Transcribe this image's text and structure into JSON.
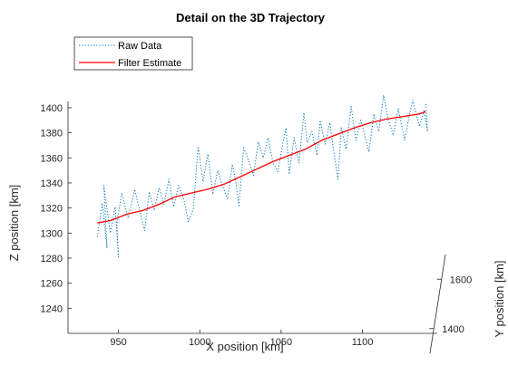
{
  "chart_data": {
    "type": "line",
    "title": "Detail on the 3D Trajectory",
    "xlabel": "X position [km]",
    "ylabel": "Y position [km]",
    "zlabel": "Z position [km]",
    "x_ticks": [
      950,
      1000,
      1050,
      1100
    ],
    "y_ticks": [
      1400,
      1600
    ],
    "z_ticks": [
      1240,
      1260,
      1280,
      1300,
      1320,
      1340,
      1360,
      1380,
      1400
    ],
    "xlim": [
      919,
      1146
    ],
    "zlim": [
      1220,
      1405
    ],
    "ylim": [
      1300,
      1700
    ],
    "grid": false,
    "legend_position": "top-left",
    "colors": {
      "raw": "#0072BD",
      "filter": "#FF0000",
      "axes": "#262626"
    },
    "series": [
      {
        "name": "Raw Data",
        "style": "dotted",
        "points": [
          [
            937,
            1297
          ],
          [
            940,
            1324
          ],
          [
            943,
            1288
          ],
          [
            941,
            1338
          ],
          [
            945,
            1300
          ],
          [
            948,
            1321
          ],
          [
            950,
            1281
          ],
          [
            949,
            1307
          ],
          [
            952,
            1332
          ],
          [
            956,
            1312
          ],
          [
            960,
            1335
          ],
          [
            963,
            1318
          ],
          [
            966,
            1302
          ],
          [
            969,
            1333
          ],
          [
            972,
            1318
          ],
          [
            975,
            1336
          ],
          [
            978,
            1323
          ],
          [
            981,
            1343
          ],
          [
            984,
            1321
          ],
          [
            987,
            1338
          ],
          [
            990,
            1328
          ],
          [
            993,
            1309
          ],
          [
            996,
            1319
          ],
          [
            999,
            1369
          ],
          [
            1002,
            1341
          ],
          [
            1005,
            1363
          ],
          [
            1008,
            1331
          ],
          [
            1011,
            1350
          ],
          [
            1014,
            1338
          ],
          [
            1017,
            1327
          ],
          [
            1020,
            1355
          ],
          [
            1022,
            1342
          ],
          [
            1024,
            1322
          ],
          [
            1027,
            1368
          ],
          [
            1030,
            1358
          ],
          [
            1033,
            1346
          ],
          [
            1036,
            1373
          ],
          [
            1039,
            1360
          ],
          [
            1042,
            1376
          ],
          [
            1045,
            1356
          ],
          [
            1048,
            1349
          ],
          [
            1051,
            1371
          ],
          [
            1053,
            1384
          ],
          [
            1055,
            1347
          ],
          [
            1058,
            1376
          ],
          [
            1061,
            1356
          ],
          [
            1064,
            1396
          ],
          [
            1066,
            1372
          ],
          [
            1069,
            1381
          ],
          [
            1072,
            1362
          ],
          [
            1074,
            1390
          ],
          [
            1077,
            1371
          ],
          [
            1080,
            1388
          ],
          [
            1082,
            1368
          ],
          [
            1085,
            1343
          ],
          [
            1087,
            1384
          ],
          [
            1090,
            1367
          ],
          [
            1093,
            1401
          ],
          [
            1096,
            1374
          ],
          [
            1099,
            1390
          ],
          [
            1101,
            1380
          ],
          [
            1104,
            1365
          ],
          [
            1107,
            1395
          ],
          [
            1110,
            1381
          ],
          [
            1113,
            1410
          ],
          [
            1116,
            1390
          ],
          [
            1119,
            1378
          ],
          [
            1122,
            1399
          ],
          [
            1126,
            1374
          ],
          [
            1129,
            1395
          ],
          [
            1131,
            1406
          ],
          [
            1135,
            1385
          ],
          [
            1138,
            1398
          ],
          [
            1140,
            1381
          ],
          [
            1139,
            1404
          ]
        ]
      },
      {
        "name": "Filter Estimate",
        "style": "solid",
        "points": [
          [
            937,
            1308
          ],
          [
            945,
            1310
          ],
          [
            955,
            1315
          ],
          [
            965,
            1318
          ],
          [
            975,
            1323
          ],
          [
            985,
            1329
          ],
          [
            995,
            1332
          ],
          [
            1005,
            1335
          ],
          [
            1015,
            1339
          ],
          [
            1025,
            1345
          ],
          [
            1035,
            1351
          ],
          [
            1045,
            1357
          ],
          [
            1055,
            1362
          ],
          [
            1065,
            1367
          ],
          [
            1075,
            1374
          ],
          [
            1085,
            1379
          ],
          [
            1095,
            1384
          ],
          [
            1105,
            1388
          ],
          [
            1115,
            1391
          ],
          [
            1125,
            1393
          ],
          [
            1135,
            1395
          ],
          [
            1139,
            1397
          ]
        ]
      }
    ]
  }
}
